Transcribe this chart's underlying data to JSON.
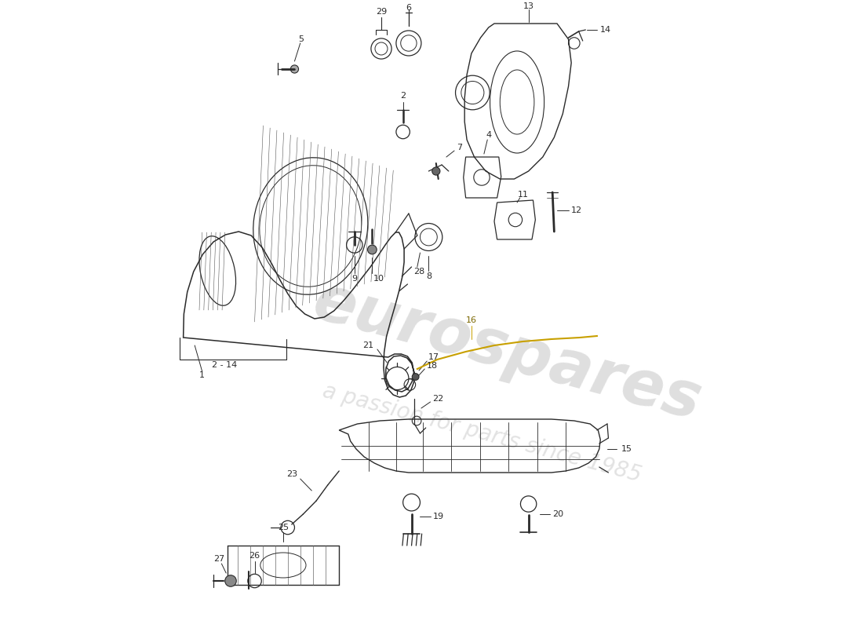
{
  "bg_color": "#ffffff",
  "line_color": "#2a2a2a",
  "wm1_text": "eurospares",
  "wm2_text": "a passion for parts since 1985",
  "wm1_color": "#b8b8b8",
  "wm2_color": "#b8b8b8",
  "wm1_alpha": 0.45,
  "wm2_alpha": 0.4,
  "wm1_size": 58,
  "wm2_size": 20,
  "wm_rotation": -15,
  "label_fs": 9,
  "figw": 11.0,
  "figh": 8.0,
  "dpi": 100,
  "yellow_wire_color": "#c8a000"
}
